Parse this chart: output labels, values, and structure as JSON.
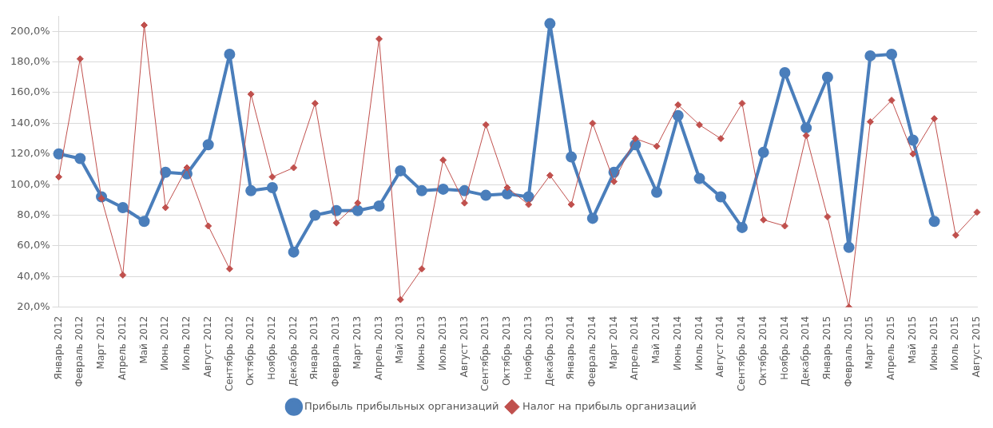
{
  "chart_data": {
    "type": "line",
    "categories": [
      "Январь 2012",
      "Февраль 2012",
      "Март 2012",
      "Апрель 2012",
      "Май 2012",
      "Июнь 2012",
      "Июль 2012",
      "Август 2012",
      "Сентябрь 2012",
      "Октябрь 2012",
      "Ноябрь 2012",
      "Декабрь 2012",
      "Январь 2013",
      "Февраль 2013",
      "Март 2013",
      "Апрель 2013",
      "Май 2013",
      "Июнь 2013",
      "Июль 2013",
      "Август 2013",
      "Сентябрь 2013",
      "Октябрь 2013",
      "Ноябрь 2013",
      "Декабрь 2013",
      "Январь 2014",
      "Февраль 2014",
      "Март 2014",
      "Апрель 2014",
      "Май 2014",
      "Июнь 2014",
      "Июль 2014",
      "Август 2014",
      "Сентябрь 2014",
      "Октябрь 2014",
      "Ноябрь 2014",
      "Декабрь 2014",
      "Январь 2015",
      "Февраль 2015",
      "Март 2015",
      "Апрель 2015",
      "Май 2015",
      "Июнь 2015",
      "Июль 2015",
      "Август 2015"
    ],
    "series": [
      {
        "name": "Прибыль прибыльных организаций",
        "color": "#4a7ebb",
        "marker": "circle",
        "values": [
          120,
          117,
          92,
          85,
          76,
          108,
          107,
          126,
          185,
          96,
          98,
          56,
          80,
          83,
          83,
          86,
          109,
          96,
          97,
          96,
          93,
          94,
          92,
          205,
          118,
          78,
          108,
          126,
          95,
          145,
          104,
          92,
          72,
          121,
          173,
          137,
          170,
          59,
          184,
          185,
          129,
          76,
          null,
          null
        ]
      },
      {
        "name": "Налог на прибыль организаций",
        "color": "#c0504d",
        "marker": "diamond",
        "values": [
          105,
          182,
          91,
          41,
          204,
          85,
          111,
          73,
          45,
          159,
          105,
          111,
          153,
          75,
          88,
          195,
          25,
          45,
          116,
          88,
          139,
          98,
          87,
          106,
          87,
          140,
          102,
          130,
          125,
          152,
          139,
          130,
          153,
          77,
          73,
          132,
          79,
          20,
          141,
          155,
          120,
          143,
          67,
          82
        ]
      }
    ],
    "ylim": [
      20,
      210
    ],
    "yticks": [
      {
        "value": 20,
        "label": "20,0%"
      },
      {
        "value": 40,
        "label": "40,0%"
      },
      {
        "value": 60,
        "label": "60,0%"
      },
      {
        "value": 80,
        "label": "80,0%"
      },
      {
        "value": 100,
        "label": "100,0%"
      },
      {
        "value": 120,
        "label": "120,0%"
      },
      {
        "value": 140,
        "label": "140,0%"
      },
      {
        "value": 160,
        "label": "160,0%"
      },
      {
        "value": 180,
        "label": "180,0%"
      },
      {
        "value": 200,
        "label": "200,0%"
      }
    ],
    "grid": "y",
    "legend": "bottom"
  }
}
